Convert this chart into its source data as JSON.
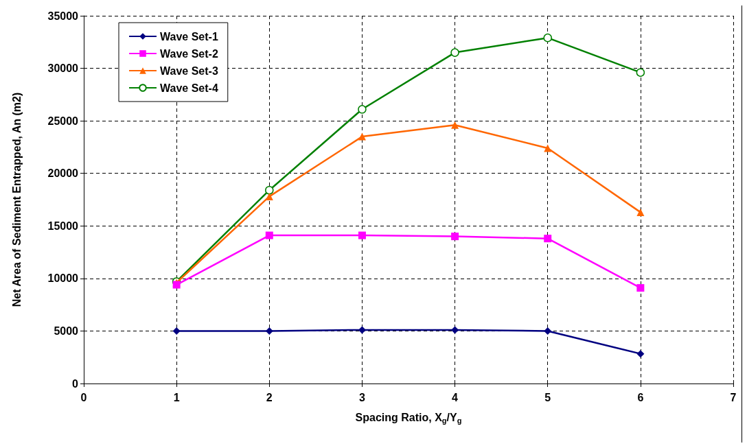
{
  "chart_data": {
    "type": "line",
    "xlabel": "Spacing Ratio, X$_{g}$/Y$_{g}$",
    "ylabel": "Net Area of Sediment Entrapped, An (m2)",
    "x": [
      1,
      2,
      3,
      4,
      5,
      6
    ],
    "series": [
      {
        "name": "Wave Set-1",
        "color": "#000080",
        "marker": "diamond",
        "values": [
          5000,
          5000,
          5100,
          5100,
          5000,
          2830
        ]
      },
      {
        "name": "Wave Set-2",
        "color": "#ff00ff",
        "marker": "square",
        "values": [
          9400,
          14100,
          14100,
          14000,
          13800,
          9100
        ]
      },
      {
        "name": "Wave Set-3",
        "color": "#ff6600",
        "marker": "triangle",
        "values": [
          9600,
          17800,
          23500,
          24600,
          22400,
          16300
        ]
      },
      {
        "name": "Wave Set-4",
        "color": "#008000",
        "marker": "circle",
        "values": [
          9700,
          18400,
          26100,
          31500,
          32900,
          29600
        ]
      }
    ],
    "xlim": [
      0,
      7
    ],
    "xticks": [
      0,
      1,
      2,
      3,
      4,
      5,
      6,
      7
    ],
    "ylim": [
      0,
      35000
    ],
    "yticks": [
      0,
      5000,
      10000,
      15000,
      20000,
      25000,
      30000,
      35000
    ],
    "grid": true,
    "legend": "top left",
    "line_style": "solid"
  }
}
